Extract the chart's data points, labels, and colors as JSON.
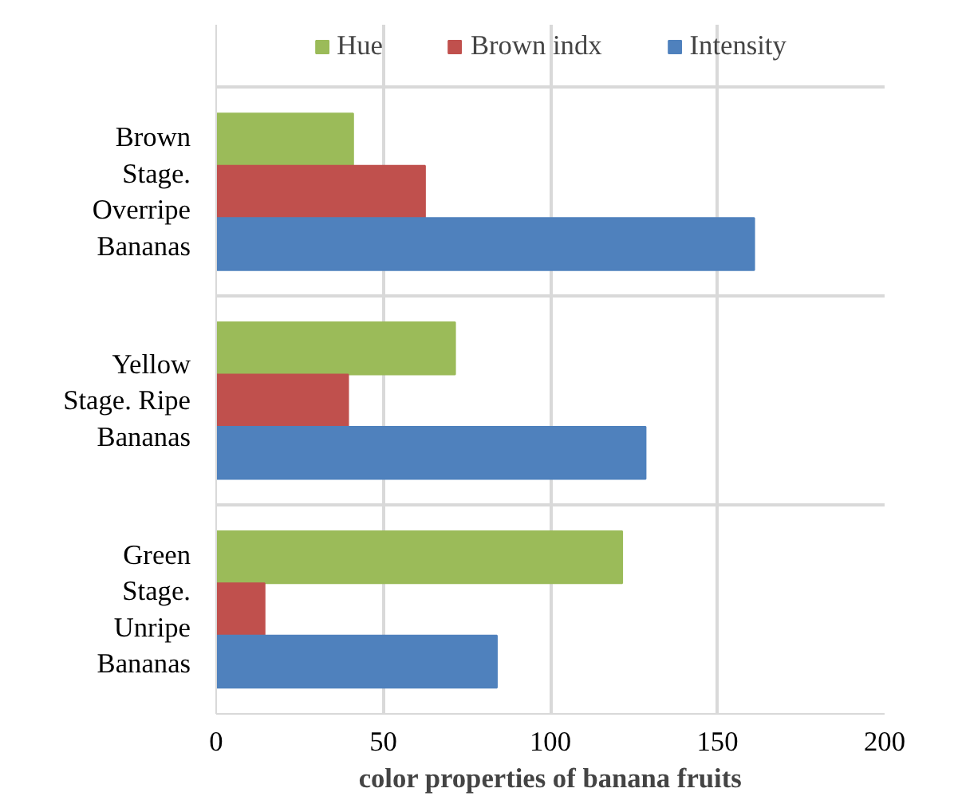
{
  "chart_data": {
    "type": "bar",
    "orientation": "horizontal",
    "xlabel": "color properties of banana fruits",
    "categories": [
      "Brown Stage. Overripe Bananas",
      "Yellow Stage. Ripe Bananas",
      "Green Stage. Unripe Bananas"
    ],
    "series": [
      {
        "name": "Hue",
        "color": "#9bbb59",
        "values": [
          41,
          71.5,
          121.5
        ]
      },
      {
        "name": "Brown indx",
        "color": "#c0504d",
        "values": [
          62.5,
          39.5,
          14.5
        ]
      },
      {
        "name": "Intensity",
        "color": "#4f81bd",
        "values": [
          161,
          128.5,
          84
        ]
      }
    ],
    "xlim": [
      0,
      200
    ],
    "xticks": [
      0,
      50,
      100,
      150,
      200
    ],
    "grid": true,
    "legend": "top"
  }
}
